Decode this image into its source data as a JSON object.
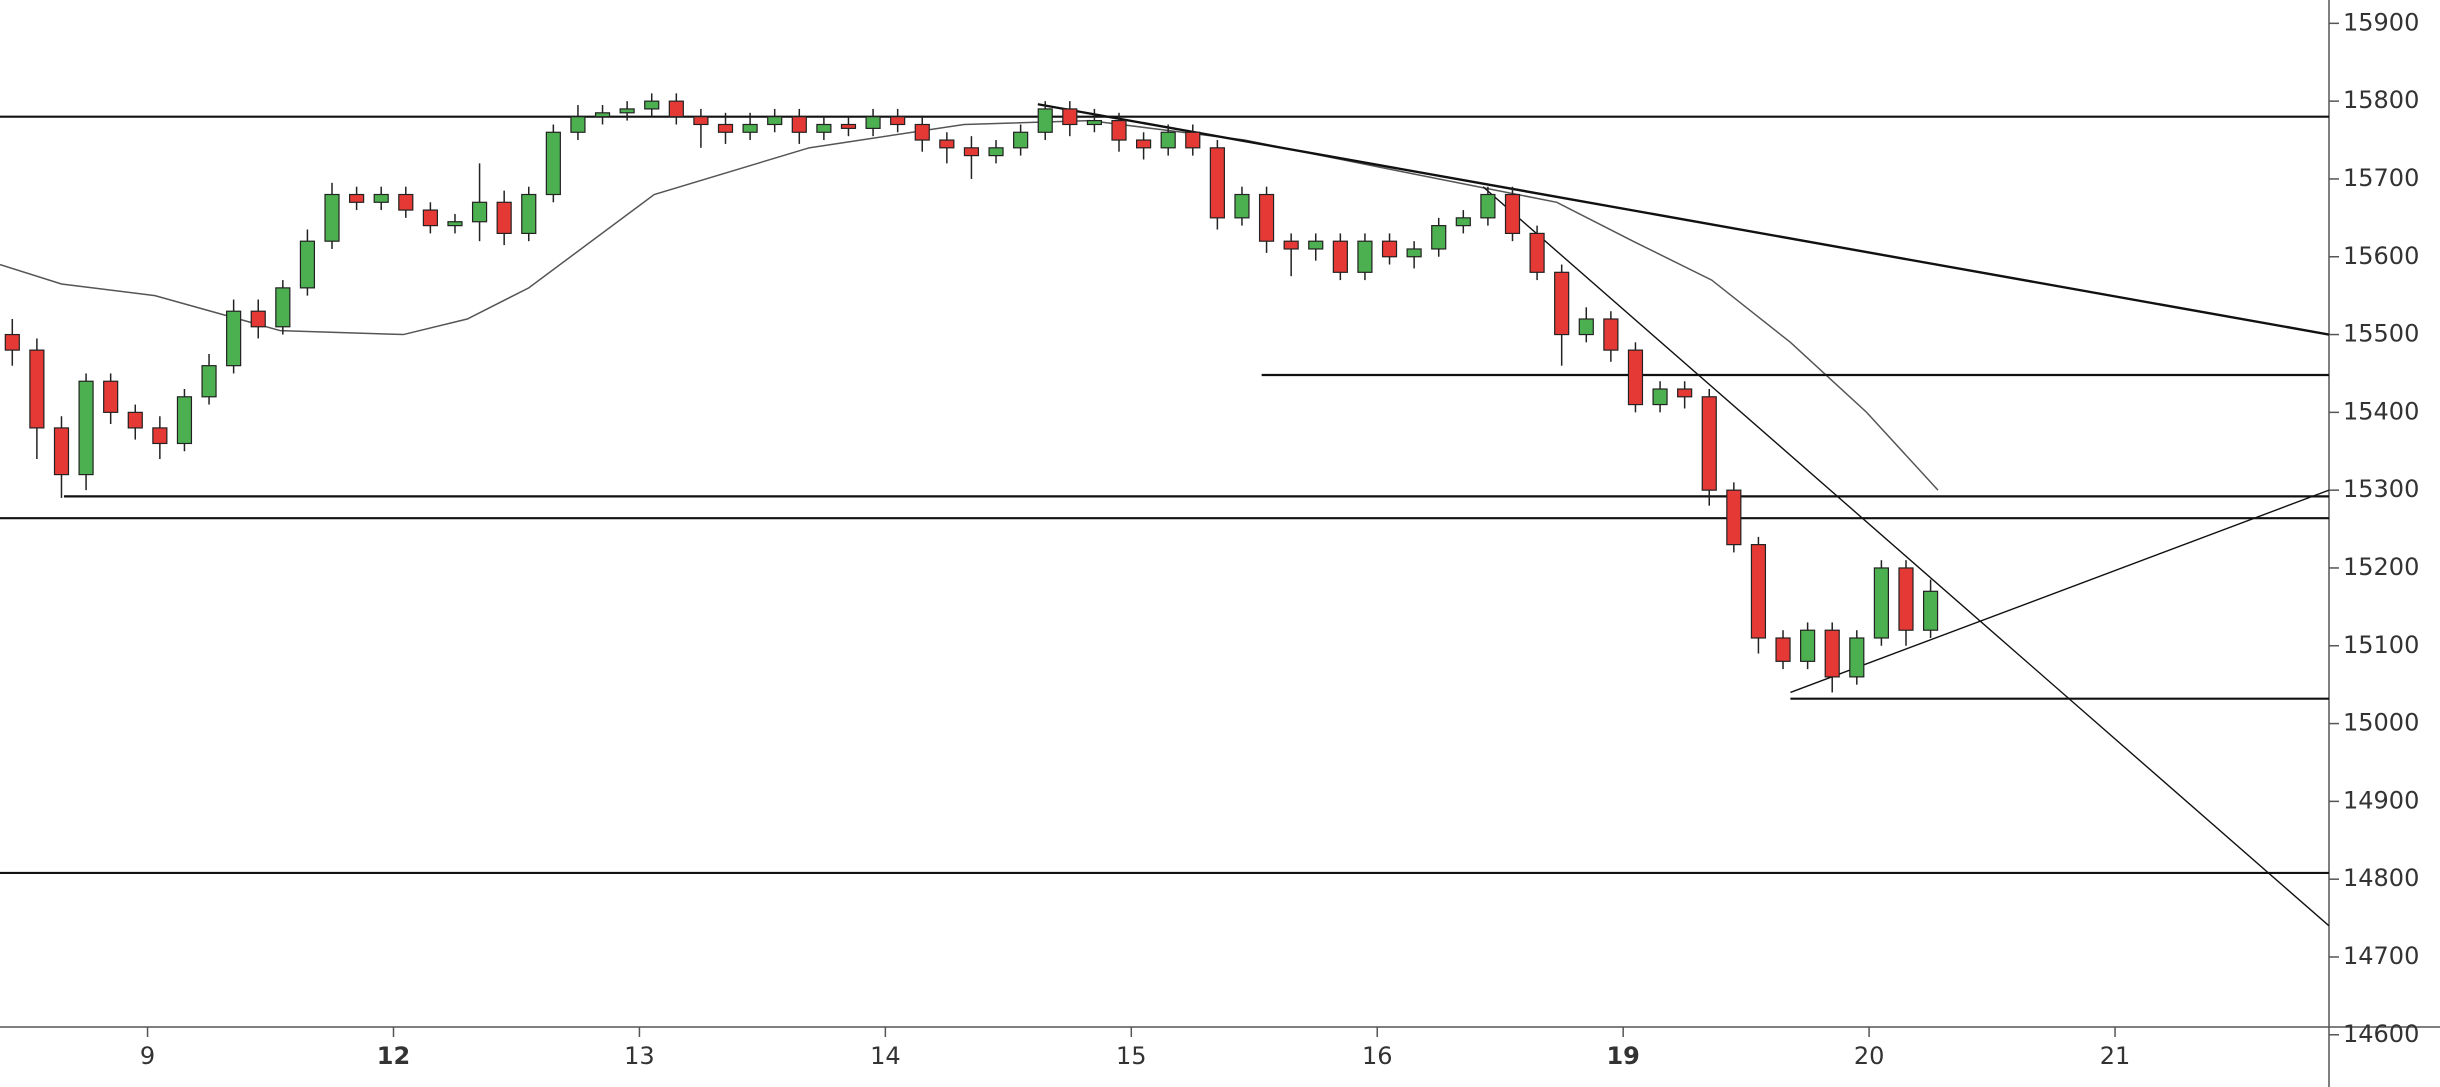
{
  "chart_data": {
    "type": "candlestick",
    "up_color": "#4caf50",
    "down_color": "#e53935",
    "outline_color": "#222222",
    "xlim": [
      -0.6,
      8.87
    ],
    "ylim": [
      14610,
      15930
    ],
    "yticks": [
      14600,
      14700,
      14800,
      14900,
      15000,
      15100,
      15200,
      15300,
      15400,
      15500,
      15600,
      15700,
      15800,
      15900
    ],
    "xticks": [
      {
        "value": 0,
        "label": "9"
      },
      {
        "value": 1,
        "label": "12",
        "bold": true
      },
      {
        "value": 2,
        "label": "13"
      },
      {
        "value": 3,
        "label": "14"
      },
      {
        "value": 4,
        "label": "15"
      },
      {
        "value": 5,
        "label": "16"
      },
      {
        "value": 6,
        "label": "19",
        "bold": true
      },
      {
        "value": 7,
        "label": "20"
      },
      {
        "value": 8,
        "label": "21"
      }
    ],
    "x": [
      -0.55,
      -0.45,
      -0.35,
      -0.25,
      -0.15,
      -0.05,
      0.05,
      0.15,
      0.25,
      0.35,
      0.45,
      0.55,
      0.65,
      0.75,
      0.85,
      0.95,
      1.05,
      1.15,
      1.25,
      1.35,
      1.45,
      1.55,
      1.65,
      1.75,
      1.85,
      1.95,
      2.05,
      2.15,
      2.25,
      2.35,
      2.45,
      2.55,
      2.65,
      2.75,
      2.85,
      2.95,
      3.05,
      3.15,
      3.25,
      3.35,
      3.45,
      3.55,
      3.65,
      3.75,
      3.85,
      3.95,
      4.05,
      4.15,
      4.25,
      4.35,
      4.45,
      4.55,
      4.65,
      4.75,
      4.85,
      4.95,
      5.05,
      5.15,
      5.25,
      5.35,
      5.45,
      5.55,
      5.65,
      5.75,
      5.85,
      5.95,
      6.05,
      6.15,
      6.25,
      6.35,
      6.45,
      6.55,
      6.65,
      6.75,
      6.85,
      6.95,
      7.05,
      7.15,
      7.25
    ],
    "open": [
      15500,
      15480,
      15380,
      15320,
      15440,
      15400,
      15380,
      15360,
      15420,
      15460,
      15530,
      15510,
      15560,
      15620,
      15680,
      15670,
      15680,
      15660,
      15640,
      15645,
      15670,
      15630,
      15680,
      15760,
      15780,
      15785,
      15790,
      15800,
      15780,
      15770,
      15760,
      15770,
      15780,
      15760,
      15770,
      15765,
      15780,
      15770,
      15750,
      15740,
      15730,
      15740,
      15760,
      15790,
      15770,
      15775,
      15750,
      15740,
      15760,
      15740,
      15650,
      15680,
      15620,
      15610,
      15620,
      15580,
      15620,
      15600,
      15610,
      15640,
      15650,
      15680,
      15630,
      15580,
      15500,
      15520,
      15480,
      15410,
      15430,
      15420,
      15300,
      15230,
      15110,
      15080,
      15120,
      15060,
      15110,
      15200,
      15120
    ],
    "high": [
      15520,
      15495,
      15395,
      15450,
      15450,
      15410,
      15395,
      15430,
      15475,
      15545,
      15545,
      15570,
      15635,
      15695,
      15690,
      15690,
      15690,
      15670,
      15655,
      15720,
      15685,
      15690,
      15770,
      15795,
      15795,
      15800,
      15810,
      15810,
      15790,
      15785,
      15785,
      15790,
      15790,
      15780,
      15780,
      15790,
      15790,
      15780,
      15760,
      15755,
      15750,
      15770,
      15800,
      15800,
      15790,
      15785,
      15760,
      15770,
      15770,
      15750,
      15690,
      15690,
      15630,
      15630,
      15630,
      15630,
      15630,
      15620,
      15650,
      15660,
      15690,
      15690,
      15640,
      15590,
      15535,
      15530,
      15490,
      15440,
      15440,
      15430,
      15310,
      15240,
      15120,
      15130,
      15130,
      15120,
      15210,
      15210,
      15185
    ],
    "low": [
      15460,
      15340,
      15290,
      15300,
      15385,
      15365,
      15340,
      15350,
      15410,
      15450,
      15495,
      15500,
      15550,
      15610,
      15660,
      15660,
      15650,
      15630,
      15630,
      15620,
      15615,
      15620,
      15670,
      15750,
      15770,
      15775,
      15780,
      15770,
      15740,
      15745,
      15750,
      15760,
      15745,
      15750,
      15755,
      15755,
      15760,
      15735,
      15720,
      15700,
      15720,
      15730,
      15750,
      15755,
      15760,
      15735,
      15725,
      15730,
      15730,
      15635,
      15640,
      15605,
      15575,
      15595,
      15570,
      15570,
      15590,
      15585,
      15600,
      15630,
      15640,
      15620,
      15570,
      15460,
      15490,
      15465,
      15400,
      15400,
      15405,
      15280,
      15220,
      15090,
      15070,
      15070,
      15040,
      15050,
      15100,
      15100,
      15110
    ],
    "close": [
      15480,
      15380,
      15320,
      15440,
      15400,
      15380,
      15360,
      15420,
      15460,
      15530,
      15510,
      15560,
      15620,
      15680,
      15670,
      15680,
      15660,
      15640,
      15645,
      15670,
      15630,
      15680,
      15760,
      15780,
      15785,
      15790,
      15800,
      15780,
      15770,
      15760,
      15770,
      15780,
      15760,
      15770,
      15765,
      15780,
      15770,
      15750,
      15740,
      15730,
      15740,
      15760,
      15790,
      15770,
      15775,
      15750,
      15740,
      15760,
      15740,
      15650,
      15680,
      15620,
      15610,
      15620,
      15580,
      15620,
      15600,
      15610,
      15640,
      15650,
      15680,
      15630,
      15580,
      15500,
      15520,
      15480,
      15410,
      15430,
      15420,
      15300,
      15230,
      15110,
      15080,
      15120,
      15060,
      15110,
      15200,
      15120,
      15170
    ],
    "moving_average": {
      "color": "#555555",
      "x": [
        -0.6,
        -0.35,
        0.03,
        0.54,
        1.04,
        1.3,
        1.55,
        2.06,
        2.69,
        3.32,
        3.83,
        4.46,
        5.09,
        5.41,
        5.73,
        6.04,
        6.36,
        6.68,
        6.99,
        7.28
      ],
      "values": [
        15590,
        15565,
        15550,
        15505,
        15500,
        15520,
        15560,
        15680,
        15740,
        15770,
        15775,
        15750,
        15710,
        15690,
        15670,
        15620,
        15570,
        15490,
        15400,
        15300
      ]
    },
    "drawings": [
      {
        "x": [
          -0.6,
          8.87
        ],
        "y": [
          15780,
          15780
        ]
      },
      {
        "x": [
          -0.34,
          8.87
        ],
        "y": [
          15292,
          15292
        ]
      },
      {
        "x": [
          -0.6,
          8.87
        ],
        "y": [
          15264,
          15264
        ]
      },
      {
        "x": [
          -0.6,
          8.87
        ],
        "y": [
          14808,
          14808
        ]
      },
      {
        "x": [
          4.53,
          8.87
        ],
        "y": [
          15448,
          15448
        ]
      },
      {
        "x": [
          6.68,
          8.87
        ],
        "y": [
          15032,
          15032
        ]
      },
      {
        "x": [
          3.62,
          8.87
        ],
        "y": [
          15796,
          15500
        ]
      },
      {
        "x": [
          5.43,
          8.87
        ],
        "y": [
          15690,
          14740
        ]
      },
      {
        "x": [
          6.68,
          8.87
        ],
        "y": [
          15040,
          15300
        ]
      }
    ]
  }
}
